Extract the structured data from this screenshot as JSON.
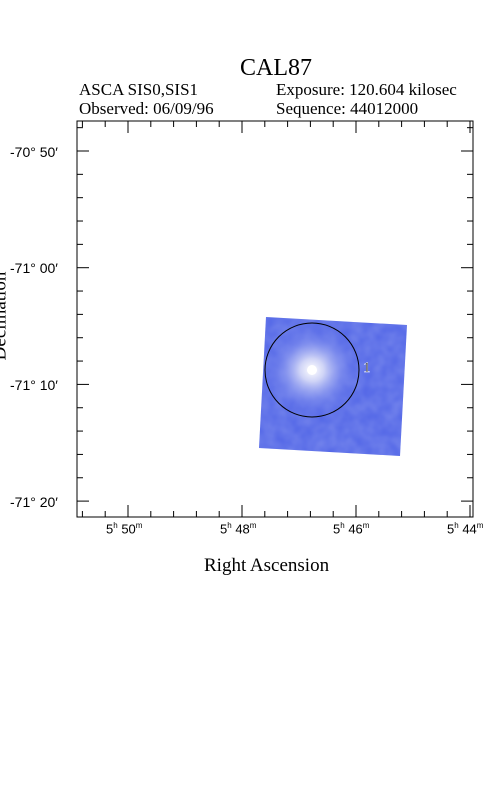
{
  "header": {
    "title": "CAL87",
    "instrument": "ASCA SIS0,SIS1",
    "observed": "Observed: 06/09/96",
    "exposure": "Exposure: 120.604 kilosec",
    "sequence": "Sequence: 44012000"
  },
  "axes": {
    "xlabel": "Right Ascension",
    "ylabel": "Declination",
    "yticks": [
      "-70° 50′",
      "-71° 00′",
      "-71° 10′",
      "-71° 20′"
    ],
    "xticks": [
      {
        "h": "5",
        "m": "50"
      },
      {
        "h": "5",
        "m": "48"
      },
      {
        "h": "5",
        "m": "46"
      },
      {
        "h": "5",
        "m": "44"
      }
    ]
  },
  "image": {
    "source_label": "1",
    "colors": {
      "field": "#4f63e6",
      "source": "#ffffff",
      "region": "#000000"
    }
  }
}
